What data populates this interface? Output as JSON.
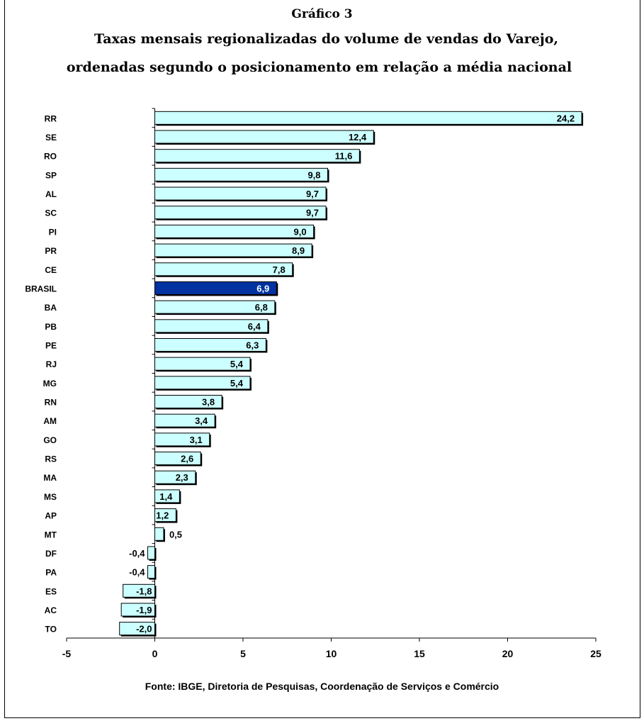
{
  "chart_data": {
    "type": "bar",
    "orientation": "horizontal",
    "title": "Gráfico 3",
    "subtitle_line1": "Taxas mensais regionalizadas  do volume de vendas do Varejo,",
    "subtitle_line2": "ordenadas segundo o posicionamento em relação a média nacional",
    "source": "Fonte: IBGE, Diretoria de Pesquisas, Coordenação de Serviços e Comércio",
    "categories": [
      "RR",
      "SE",
      "RO",
      "SP",
      "AL",
      "SC",
      "PI",
      "PR",
      "CE",
      "BRASIL",
      "BA",
      "PB",
      "PE",
      "RJ",
      "MG",
      "RN",
      "AM",
      "GO",
      "RS",
      "MA",
      "MS",
      "AP",
      "MT",
      "DF",
      "PA",
      "ES",
      "AC",
      "TO"
    ],
    "values": [
      24.2,
      12.4,
      11.6,
      9.8,
      9.7,
      9.7,
      9.0,
      8.9,
      7.8,
      6.9,
      6.8,
      6.4,
      6.3,
      5.4,
      5.4,
      3.8,
      3.4,
      3.1,
      2.6,
      2.3,
      1.4,
      1.2,
      0.5,
      -0.4,
      -0.4,
      -1.8,
      -1.9,
      -2.0
    ],
    "data_labels": [
      "24,2",
      "12,4",
      "11,6",
      "9,8",
      "9,7",
      "9,7",
      "9,0",
      "8,9",
      "7,8",
      "6,9",
      "6,8",
      "6,4",
      "6,3",
      "5,4",
      "5,4",
      "3,8",
      "3,4",
      "3,1",
      "2,6",
      "2,3",
      "1,4",
      "1,2",
      "0,5",
      "-0,4",
      "-0,4",
      "-1,8",
      "-1,9",
      "-2,0"
    ],
    "highlight_category": "BRASIL",
    "xlim": [
      -5,
      25
    ],
    "x_ticks": [
      -5,
      0,
      5,
      10,
      15,
      20,
      25
    ],
    "x_tick_labels": [
      "-5",
      "0",
      "5",
      "10",
      "15",
      "20",
      "25"
    ],
    "grid": false,
    "colors": {
      "bar_fill": "#ccffff",
      "highlight_fill": "#0033a0",
      "bar_stroke": "#000000",
      "highlight_label": "#ffffff"
    }
  }
}
